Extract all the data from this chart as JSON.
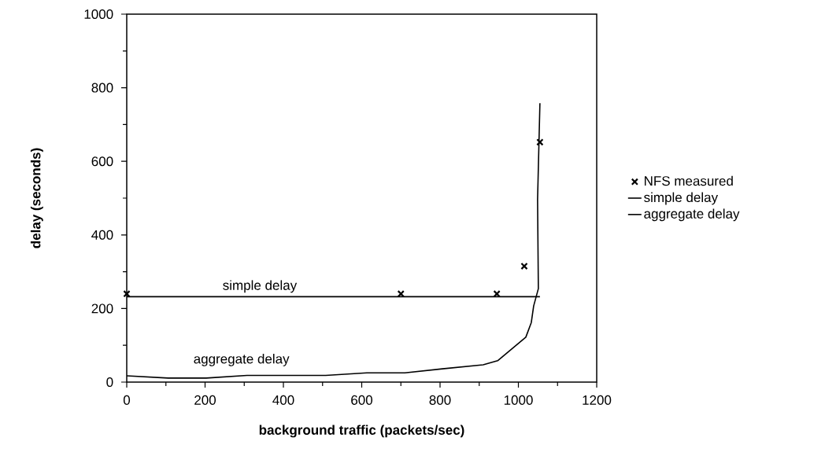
{
  "chart_data": {
    "type": "line",
    "xlabel": "background traffic (packets/sec)",
    "ylabel": "delay (seconds)",
    "series": [
      {
        "name": "NFS measured",
        "type": "scatter",
        "marker": "cross",
        "color": "#000000",
        "x": [
          0,
          700,
          945,
          1015,
          1055
        ],
        "values": [
          240,
          240,
          240,
          315,
          652
        ]
      },
      {
        "name": "simple delay",
        "color": "#000000",
        "line_style": "solid",
        "x": [
          0,
          1055
        ],
        "values": [
          232,
          232
        ]
      },
      {
        "name": "aggregate delay",
        "color": "#000000",
        "line_style": "solid",
        "x": [
          0,
          106,
          203,
          307,
          508,
          613,
          710,
          806,
          910,
          947,
          1019,
          1033,
          1039,
          1051,
          1049,
          1055
        ],
        "values": [
          17,
          11,
          11,
          18,
          18,
          25,
          25,
          36,
          47,
          58,
          122,
          162,
          207,
          254,
          496,
          758
        ]
      }
    ],
    "annotations": [
      "simple delay",
      "aggregate delay"
    ],
    "xlim": [
      0,
      1200
    ],
    "ylim": [
      0,
      1000
    ],
    "xticks": [
      0,
      200,
      400,
      600,
      800,
      1000,
      1200
    ],
    "yticks": [
      0,
      200,
      400,
      600,
      800,
      1000
    ],
    "grid": false,
    "legend": "right"
  }
}
